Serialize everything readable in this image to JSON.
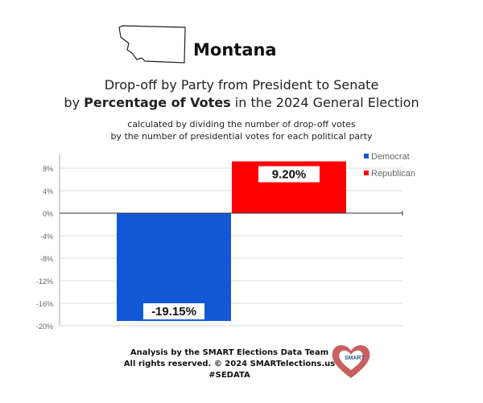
{
  "header": {
    "state": "Montana",
    "title_line1": "Drop-off by Party from President to Senate",
    "title_line2_pre": "by ",
    "title_line2_bold": "Percentage of Votes",
    "title_line2_post": " in the 2024 General Election",
    "subtitle_line1": "calculated by dividing the number of drop-off votes",
    "subtitle_line2": "by the number of presidential votes for each political party"
  },
  "chart_data": {
    "type": "bar",
    "categories": [
      "Democrat",
      "Republican"
    ],
    "values": [
      -19.15,
      9.2
    ],
    "data_labels": [
      "-19.15%",
      "9.20%"
    ],
    "colors": [
      "#1258d6",
      "#ff0000"
    ],
    "ylim": [
      -20,
      10
    ],
    "yticks": [
      -20,
      -16,
      -12,
      -8,
      -4,
      0,
      4,
      8
    ],
    "ytick_labels": [
      "-20%",
      "-16%",
      "-12%",
      "-8%",
      "-4%",
      "0%",
      "4%",
      "8%"
    ],
    "grid": true,
    "legend": [
      "Democrat",
      "Republican"
    ],
    "legend_placement": "top-right"
  },
  "footer": {
    "line1": "Analysis by the SMART Elections Data Team",
    "line2": "All rights reserved. © 2024 SMARTelections.us",
    "line3": "#SEDATA",
    "logo_text": "SMART Elections"
  }
}
